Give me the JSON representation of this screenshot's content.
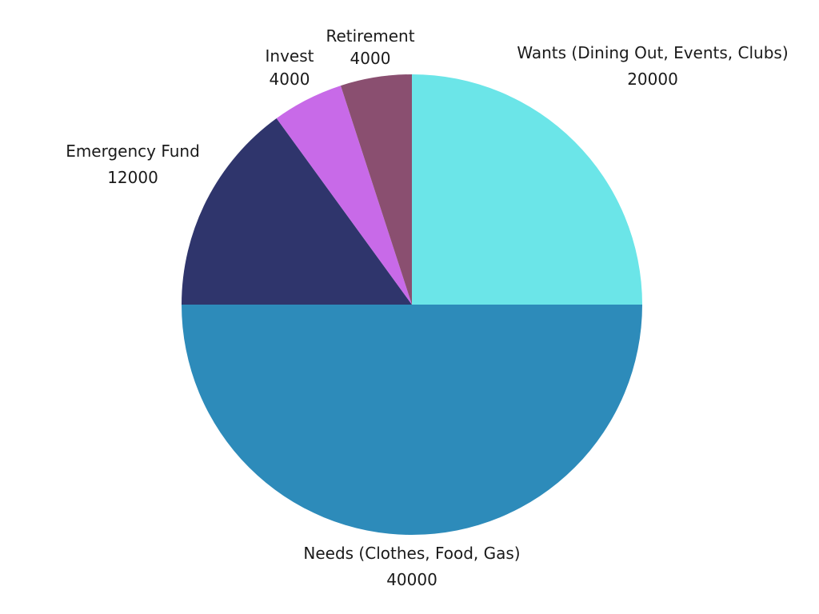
{
  "chart_data": {
    "type": "pie",
    "title": "",
    "start_angle_deg": 0,
    "direction": "clockwise",
    "slices": [
      {
        "name": "Wants (Dining Out, Events, Clubs)",
        "value": 20000,
        "display_value": "20000",
        "color": "#6be5e8"
      },
      {
        "name": "Needs (Clothes, Food, Gas)",
        "value": 40000,
        "display_value": "40000",
        "color": "#2d8bba"
      },
      {
        "name": "Emergency Fund",
        "value": 12000,
        "display_value": "12000",
        "color": "#2f356c"
      },
      {
        "name": "Invest",
        "value": 4000,
        "display_value": "4000",
        "color": "#c86ae8"
      },
      {
        "name": "Retirement",
        "value": 4000,
        "display_value": "4000",
        "color": "#8a4f70"
      }
    ]
  }
}
